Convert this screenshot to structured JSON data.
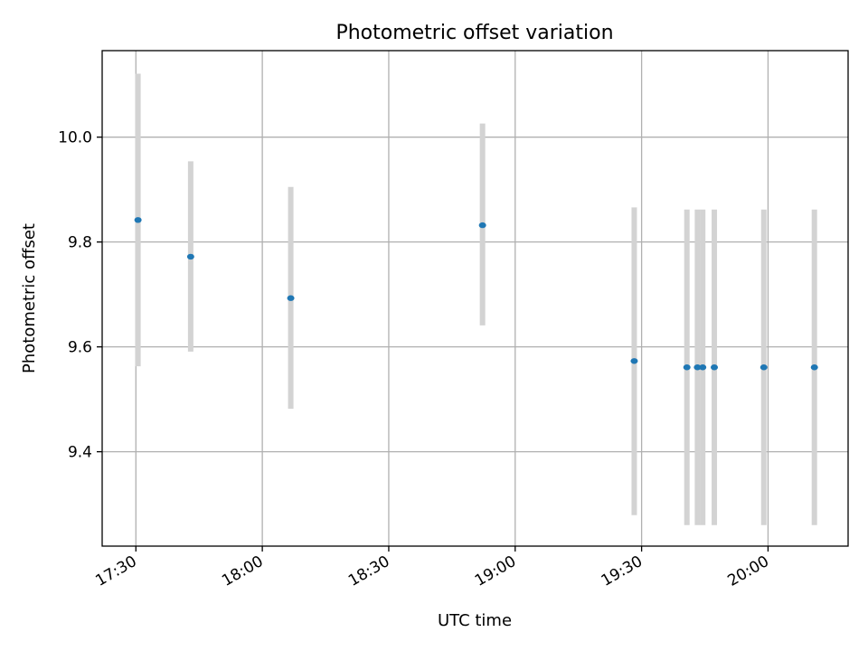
{
  "chart_data": {
    "type": "scatter",
    "title": "Photometric offset variation",
    "xlabel": "UTC time",
    "ylabel": "Photometric offset",
    "x_is_time": true,
    "xlim": [
      "17:22",
      "20:19"
    ],
    "ylim": [
      9.22,
      10.165
    ],
    "xticks": [
      "17:30",
      "18:00",
      "18:30",
      "19:00",
      "19:30",
      "20:00"
    ],
    "yticks": [
      9.4,
      9.6,
      9.8,
      10.0
    ],
    "ytick_labels": [
      "9.4",
      "9.6",
      "9.8",
      "10.0"
    ],
    "grid": true,
    "marker_color": "#1f77b4",
    "errorbar_color": "#d3d3d3",
    "series": [
      {
        "points": [
          {
            "x": "17:30:30",
            "y": 9.842,
            "ylow": 9.563,
            "yhigh": 10.121
          },
          {
            "x": "17:43:00",
            "y": 9.772,
            "ylow": 9.591,
            "yhigh": 9.954
          },
          {
            "x": "18:06:45",
            "y": 9.693,
            "ylow": 9.482,
            "yhigh": 9.905
          },
          {
            "x": "18:52:15",
            "y": 9.832,
            "ylow": 9.641,
            "yhigh": 10.026
          },
          {
            "x": "19:28:15",
            "y": 9.573,
            "ylow": 9.279,
            "yhigh": 9.866
          },
          {
            "x": "19:40:45",
            "y": 9.561,
            "ylow": 9.26,
            "yhigh": 9.862
          },
          {
            "x": "19:43:15",
            "y": 9.561,
            "ylow": 9.26,
            "yhigh": 9.862
          },
          {
            "x": "19:44:30",
            "y": 9.561,
            "ylow": 9.26,
            "yhigh": 9.862
          },
          {
            "x": "19:47:15",
            "y": 9.561,
            "ylow": 9.26,
            "yhigh": 9.862
          },
          {
            "x": "19:59:00",
            "y": 9.561,
            "ylow": 9.26,
            "yhigh": 9.862
          },
          {
            "x": "20:11:00",
            "y": 9.561,
            "ylow": 9.26,
            "yhigh": 9.862
          }
        ]
      }
    ]
  }
}
